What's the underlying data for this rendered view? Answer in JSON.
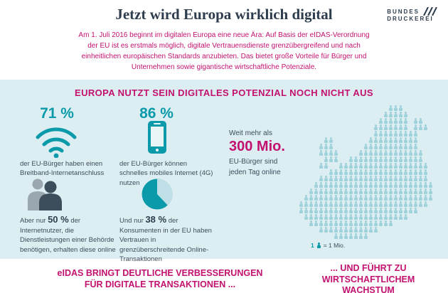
{
  "colors": {
    "magenta": "#c2116f",
    "teal": "#0b9aa9",
    "dark_text": "#3e4d5c",
    "band_bg": "#dceef2",
    "map_people": "#9fd2da"
  },
  "header": {
    "logo_line1": "BUNDES",
    "logo_line2": "DRUCKEREI",
    "title": "Jetzt wird Europa wirklich digital",
    "intro": "Am 1. Juli 2016 beginnt im digitalen Europa eine neue Ära: Auf Basis der eIDAS-Verordnung der EU ist es erstmals möglich, digitale Vertrauensdienste grenzübergreifend und nach einheitlichen europäischen Standards anzubieten. Das bietet große Vorteile für Bürger und Unternehmen sowie gigantische wirtschaftliche Potenziale."
  },
  "main": {
    "heading": "EUROPA NUTZT SEIN DIGITALES POTENZIAL NOCH NICHT AUS",
    "stat_broadband": {
      "value": "71 %",
      "icon": "wifi-icon",
      "caption": "der EU-Bürger haben einen Breitband-Internetanschluss"
    },
    "stat_mobile": {
      "value": "86 %",
      "icon": "smartphone-icon",
      "caption": "der EU-Bürger können schnelles mobiles Internet (4G) nutzen"
    },
    "stat_egov": {
      "prefix": "Aber nur ",
      "value": "50 %",
      "suffix": " der Internetnutzer, die Dienstleistungen einer Behörde benötigen, erhalten diese online",
      "icon": "citizens-icon"
    },
    "stat_trust": {
      "prefix": "Und nur ",
      "value": "38 %",
      "suffix": " der Konsumenten in der EU haben Vertrauen in grenzüberschreitende Online-Transaktionen",
      "icon": "pie-chart-icon"
    },
    "online_highlight": {
      "pre": "Weit mehr als",
      "big": "300 Mio.",
      "line2": "EU-Bürger sind",
      "line3": "jeden Tag online"
    },
    "map_legend": {
      "unit": "1",
      "equals": "= 1 Mio."
    }
  },
  "footer": {
    "left_line1": "eIDAS BRINGT DEUTLICHE VERBESSERUNGEN",
    "left_line2": "FÜR DIGITALE TRANSAKTIONEN ...",
    "right_line1": "... UND FÜHRT ZU",
    "right_line2": "WIRTSCHAFTLICHEM",
    "right_line3": "WACHSTUM"
  }
}
